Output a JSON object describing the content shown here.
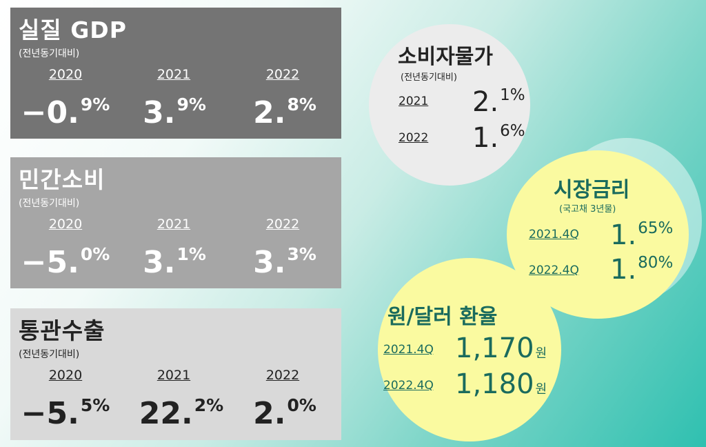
{
  "gdp": {
    "title": "실질 GDP",
    "subtitle": "(전년동기대비)",
    "years": [
      "2020",
      "2021",
      "2022"
    ],
    "values": [
      {
        "main": "−0.",
        "frac": "9%"
      },
      {
        "main": "3.",
        "frac": "9%"
      },
      {
        "main": "2.",
        "frac": "8%"
      }
    ]
  },
  "consumption": {
    "title": "민간소비",
    "subtitle": "(전년동기대비)",
    "years": [
      "2020",
      "2021",
      "2022"
    ],
    "values": [
      {
        "main": "−5.",
        "frac": "0%"
      },
      {
        "main": "3.",
        "frac": "1%"
      },
      {
        "main": "3.",
        "frac": "3%"
      }
    ]
  },
  "exports": {
    "title": "통관수출",
    "subtitle": "(전년동기대비)",
    "years": [
      "2020",
      "2021",
      "2022"
    ],
    "values": [
      {
        "main": "−5.",
        "frac": "5%"
      },
      {
        "main": "22.",
        "frac": "2%"
      },
      {
        "main": "2.",
        "frac": "0%"
      }
    ]
  },
  "cpi": {
    "title": "소비자물가",
    "subtitle": "(전년동기대비)",
    "rows": [
      {
        "label": "2021",
        "main": "2.",
        "frac": "1%"
      },
      {
        "label": "2022",
        "main": "1.",
        "frac": "6%"
      }
    ]
  },
  "rates": {
    "title": "시장금리",
    "subtitle": "(국고채 3년물)",
    "rows": [
      {
        "label": "2021.4Q",
        "main": "1.",
        "frac": "65%"
      },
      {
        "label": "2022.4Q",
        "main": "1.",
        "frac": "80%"
      }
    ]
  },
  "fx": {
    "title": "원/달러 환율",
    "rows": [
      {
        "label": "2021.4Q",
        "value": "1,170",
        "unit": "원"
      },
      {
        "label": "2022.4Q",
        "value": "1,180",
        "unit": "원"
      }
    ]
  },
  "colors": {
    "panel_dark": "#747474",
    "panel_mid": "#a6a6a6",
    "panel_light": "#d9d9d9",
    "circle_gray": "#ececec",
    "circle_yellow": "#fafaa0",
    "accent_teal": "#1a6b5d"
  }
}
